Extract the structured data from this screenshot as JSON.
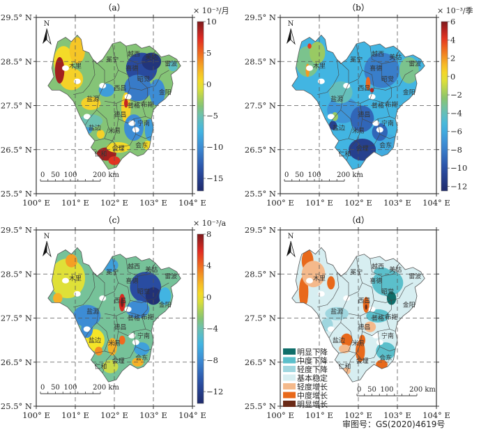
{
  "figure": {
    "approval_number": "审图号：GS(2020)4619号"
  },
  "axes": {
    "lat_ticks": [
      "29.5° N",
      "28.5° N",
      "27.5° N",
      "26.5° N",
      "25.5° N"
    ],
    "lat_values": [
      29.5,
      28.5,
      27.5,
      26.5,
      25.5
    ],
    "lon_ticks": [
      "100° E",
      "101° E",
      "102° E",
      "103° E",
      "104° E"
    ],
    "lon_values": [
      100,
      101,
      102,
      103,
      104
    ],
    "lat_range": [
      25.5,
      29.5
    ],
    "lon_range": [
      100,
      104
    ]
  },
  "north_arrow_label": "N",
  "scale_bar": {
    "labels": [
      "0",
      "50",
      "100",
      "200 km"
    ],
    "values_km": [
      0,
      50,
      100,
      200
    ]
  },
  "counties": [
    {
      "name": "木里",
      "lon": 101.0,
      "lat": 28.35
    },
    {
      "name": "冕宁",
      "lon": 101.95,
      "lat": 28.5
    },
    {
      "name": "越西",
      "lon": 102.5,
      "lat": 28.62
    },
    {
      "name": "美姑",
      "lon": 102.95,
      "lat": 28.55
    },
    {
      "name": "雷波",
      "lon": 103.45,
      "lat": 28.4
    },
    {
      "name": "喜德",
      "lon": 102.45,
      "lat": 28.3
    },
    {
      "name": "昭觉",
      "lon": 102.75,
      "lat": 28.05
    },
    {
      "name": "西昌",
      "lon": 102.15,
      "lat": 27.85
    },
    {
      "name": "金阳",
      "lon": 103.3,
      "lat": 27.75
    },
    {
      "name": "盐源",
      "lon": 101.45,
      "lat": 27.6
    },
    {
      "name": "普格",
      "lon": 102.5,
      "lat": 27.45
    },
    {
      "name": "布拖",
      "lon": 102.85,
      "lat": 27.48
    },
    {
      "name": "德昌",
      "lon": 102.15,
      "lat": 27.25
    },
    {
      "name": "宁南",
      "lon": 102.75,
      "lat": 27.05
    },
    {
      "name": "盐边",
      "lon": 101.5,
      "lat": 26.95
    },
    {
      "name": "米易",
      "lon": 102.0,
      "lat": 26.88
    },
    {
      "name": "会东",
      "lon": 102.7,
      "lat": 26.55
    },
    {
      "name": "会理",
      "lon": 102.1,
      "lat": 26.48
    },
    {
      "name": "仁和",
      "lon": 101.65,
      "lat": 26.35
    }
  ],
  "panels": [
    {
      "id": "a",
      "title": "（a）",
      "colorbar": {
        "unit": "× 10⁻³/月",
        "range": [
          -17,
          10
        ],
        "ticks": [
          10,
          5,
          0,
          -5,
          -10,
          -15
        ],
        "tick_labels": [
          "10",
          "5",
          "0",
          "−5",
          "−10",
          "−15"
        ]
      }
    },
    {
      "id": "b",
      "title": "（b）",
      "colorbar": {
        "unit": "× 10⁻³/季",
        "range": [
          -12.5,
          6
        ],
        "ticks": [
          6,
          4,
          2,
          0,
          -2,
          -4,
          -6,
          -8,
          -10,
          -12
        ],
        "tick_labels": [
          "6",
          "4",
          "2",
          "0",
          "−2",
          "−4",
          "−6",
          "−8",
          "−10",
          "−12"
        ]
      }
    },
    {
      "id": "c",
      "title": "（c）",
      "colorbar": {
        "unit": "× 10⁻³/a",
        "range": [
          -13.5,
          8
        ],
        "ticks": [
          8,
          4,
          0,
          -4,
          -8,
          -12
        ],
        "tick_labels": [
          "8",
          "4",
          "0",
          "−4",
          "−8",
          "−12"
        ]
      }
    },
    {
      "id": "d",
      "title": "（d）",
      "legend": [
        {
          "label": "明显下降",
          "color": "#0f6e6a"
        },
        {
          "label": "中度下降",
          "color": "#5bbfcb"
        },
        {
          "label": "轻度下降",
          "color": "#9fd6df"
        },
        {
          "label": "基本稳定",
          "color": "#d7eef1"
        },
        {
          "label": "轻度增长",
          "color": "#f4b98b"
        },
        {
          "label": "中度增长",
          "color": "#e8691b"
        },
        {
          "label": "明显增长",
          "color": "#6b2a17"
        }
      ]
    }
  ],
  "chart_data": [
    {
      "type": "heatmap",
      "title": "（a）",
      "xlabel": "",
      "ylabel": "",
      "x_ticks": [
        "100° E",
        "101° E",
        "102° E",
        "103° E",
        "104° E"
      ],
      "y_ticks": [
        "29.5° N",
        "28.5° N",
        "27.5° N",
        "26.5° N",
        "25.5° N"
      ],
      "xlim": [
        100,
        104
      ],
      "ylim": [
        25.5,
        29.5
      ],
      "grid": true,
      "colorbar_label": "× 10⁻³/月",
      "colorbar_range": [
        -17,
        10
      ],
      "colorbar_ticks": [
        10,
        5,
        0,
        -5,
        -10,
        -15
      ],
      "description": "Monthly trend; strongest decline (−15) in NE (越西/美姑/昭觉), increases (up to 10) in far south (仁和/会理) and scattered in 木里"
    },
    {
      "type": "heatmap",
      "title": "（b）",
      "xlabel": "",
      "ylabel": "",
      "x_ticks": [
        "100° E",
        "101° E",
        "102° E",
        "103° E",
        "104° E"
      ],
      "y_ticks": [
        "29.5° N",
        "28.5° N",
        "27.5° N",
        "26.5° N",
        "25.5° N"
      ],
      "xlim": [
        100,
        104
      ],
      "ylim": [
        25.5,
        29.5
      ],
      "grid": true,
      "colorbar_label": "× 10⁻³/季",
      "colorbar_range": [
        -12.5,
        6
      ],
      "colorbar_ticks": [
        6,
        4,
        2,
        0,
        -2,
        -4,
        -6,
        -8,
        -10,
        -12
      ],
      "description": "Seasonal trend; predominantly decline (−6 to −10), local increases near 西昌 and 木里"
    },
    {
      "type": "heatmap",
      "title": "（c）",
      "xlabel": "",
      "ylabel": "",
      "x_ticks": [
        "100° E",
        "101° E",
        "102° E",
        "103° E",
        "104° E"
      ],
      "y_ticks": [
        "29.5° N",
        "28.5° N",
        "27.5° N",
        "26.5° N",
        "25.5° N"
      ],
      "xlim": [
        100,
        104
      ],
      "ylim": [
        25.5,
        29.5
      ],
      "grid": true,
      "colorbar_label": "× 10⁻³/a",
      "colorbar_range": [
        -13.5,
        8
      ],
      "colorbar_ticks": [
        8,
        4,
        0,
        -4,
        -8,
        -12
      ],
      "description": "Annual trend; strong decline (−12) in NE, increases around 西昌, 木里 and south"
    },
    {
      "type": "heatmap",
      "title": "（d）",
      "xlabel": "",
      "ylabel": "",
      "x_ticks": [
        "100° E",
        "101° E",
        "102° E",
        "103° E",
        "104° E"
      ],
      "y_ticks": [
        "29.5° N",
        "28.5° N",
        "27.5° N",
        "26.5° N",
        "25.5° N"
      ],
      "xlim": [
        100,
        104
      ],
      "ylim": [
        25.5,
        29.5
      ],
      "grid": true,
      "categories": [
        "明显下降",
        "中度下降",
        "轻度下降",
        "基本稳定",
        "轻度增长",
        "中度增长",
        "明显增长"
      ],
      "legend_position": "bottom-left",
      "description": "Classified trend; significant decline at 昭觉, moderate decline in NE; moderate increase in 木里, 西昌, 米易, 会理"
    }
  ]
}
